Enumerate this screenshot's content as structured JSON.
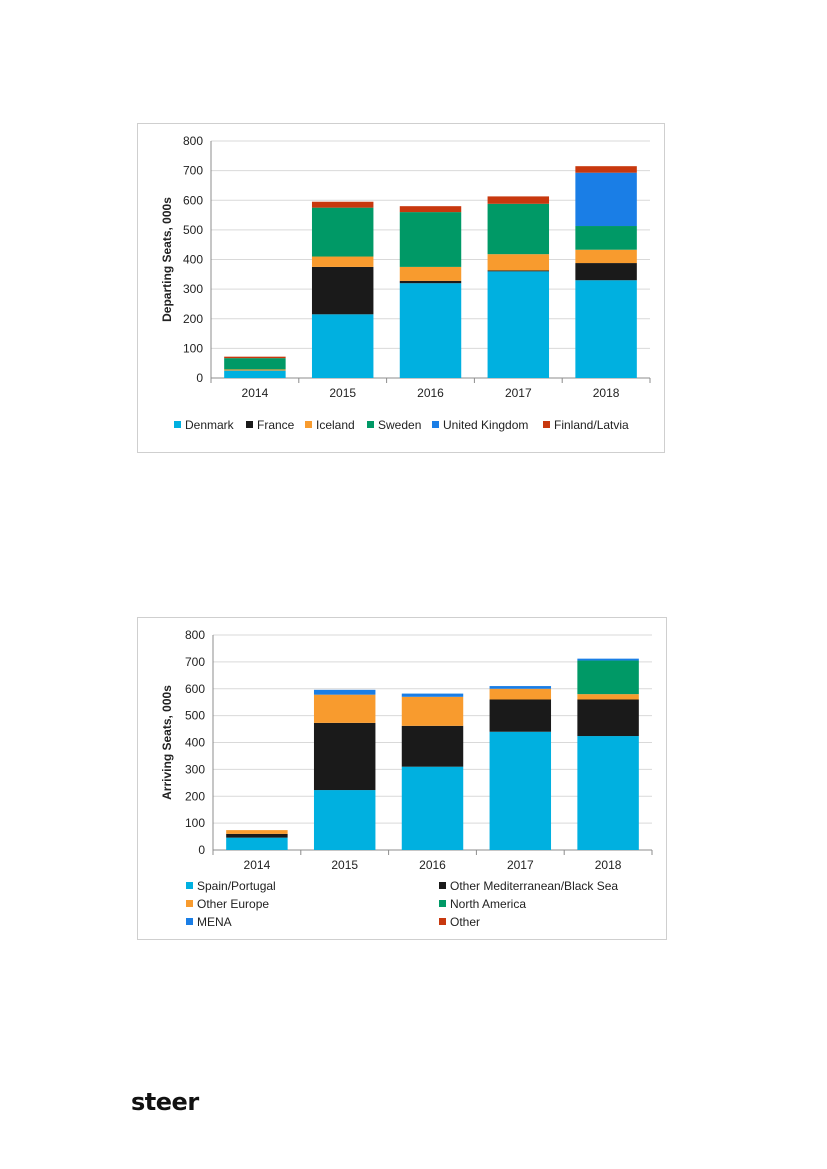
{
  "logo_text": "steer",
  "chart_data": [
    {
      "type": "bar",
      "stacked": true,
      "title": "",
      "xlabel": "",
      "ylabel": "Departing Seats, 000s",
      "ylim": [
        0,
        800
      ],
      "yticks": [
        0,
        100,
        200,
        300,
        400,
        500,
        600,
        700,
        800
      ],
      "grid": true,
      "legend_position": "bottom",
      "categories": [
        "2014",
        "2015",
        "2016",
        "2017",
        "2018"
      ],
      "series": [
        {
          "name": "Denmark",
          "color": "#00b0e0",
          "values": [
            25,
            215,
            320,
            360,
            330
          ]
        },
        {
          "name": "France",
          "color": "#1a1a1a",
          "values": [
            0,
            160,
            8,
            3,
            58
          ]
        },
        {
          "name": "Iceland",
          "color": "#f89b2e",
          "values": [
            4,
            35,
            47,
            55,
            45
          ]
        },
        {
          "name": "Sweden",
          "color": "#009966",
          "values": [
            38,
            165,
            185,
            170,
            80
          ]
        },
        {
          "name": "United Kingdom",
          "color": "#1a7ee6",
          "values": [
            0,
            0,
            0,
            0,
            180
          ]
        },
        {
          "name": "Finland/Latvia",
          "color": "#c8380e",
          "values": [
            5,
            20,
            20,
            25,
            22
          ]
        }
      ]
    },
    {
      "type": "bar",
      "stacked": true,
      "title": "",
      "xlabel": "",
      "ylabel": "Arriving Seats, 000s",
      "ylim": [
        0,
        800
      ],
      "yticks": [
        0,
        100,
        200,
        300,
        400,
        500,
        600,
        700,
        800
      ],
      "grid": true,
      "legend_position": "bottom",
      "categories": [
        "2014",
        "2015",
        "2016",
        "2017",
        "2018"
      ],
      "series": [
        {
          "name": "Spain/Portugal",
          "color": "#00b0e0",
          "values": [
            46,
            223,
            310,
            440,
            424
          ]
        },
        {
          "name": "Other Mediterranean/Black Sea",
          "color": "#1a1a1a",
          "values": [
            14,
            250,
            152,
            120,
            136
          ]
        },
        {
          "name": "Other Europe",
          "color": "#f89b2e",
          "values": [
            14,
            105,
            108,
            40,
            20
          ]
        },
        {
          "name": "North America",
          "color": "#009966",
          "values": [
            0,
            0,
            0,
            0,
            125
          ]
        },
        {
          "name": "MENA",
          "color": "#1a7ee6",
          "values": [
            0,
            18,
            12,
            10,
            7
          ]
        },
        {
          "name": "Other",
          "color": "#c8380e",
          "values": [
            0,
            0,
            0,
            0,
            0
          ]
        }
      ]
    }
  ]
}
